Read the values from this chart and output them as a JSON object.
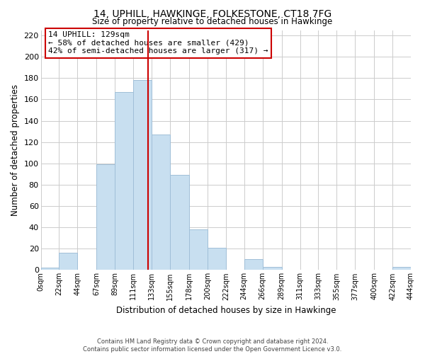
{
  "title": "14, UPHILL, HAWKINGE, FOLKESTONE, CT18 7FG",
  "subtitle": "Size of property relative to detached houses in Hawkinge",
  "xlabel": "Distribution of detached houses by size in Hawkinge",
  "ylabel": "Number of detached properties",
  "bar_color": "#c8dff0",
  "bar_edge_color": "#a0bfd8",
  "background_color": "#ffffff",
  "grid_color": "#cccccc",
  "bin_edges": [
    0,
    22,
    44,
    67,
    89,
    111,
    133,
    155,
    178,
    200,
    222,
    244,
    266,
    289,
    311,
    333,
    355,
    377,
    400,
    422,
    444
  ],
  "bin_labels": [
    "0sqm",
    "22sqm",
    "44sqm",
    "67sqm",
    "89sqm",
    "111sqm",
    "133sqm",
    "155sqm",
    "178sqm",
    "200sqm",
    "222sqm",
    "244sqm",
    "266sqm",
    "289sqm",
    "311sqm",
    "333sqm",
    "355sqm",
    "377sqm",
    "400sqm",
    "422sqm",
    "444sqm"
  ],
  "bar_heights": [
    2,
    16,
    0,
    99,
    167,
    178,
    127,
    89,
    38,
    21,
    0,
    10,
    3,
    0,
    0,
    0,
    0,
    0,
    0,
    3
  ],
  "property_line_x": 129,
  "property_line_color": "#cc0000",
  "ylim": [
    0,
    225
  ],
  "yticks": [
    0,
    20,
    40,
    60,
    80,
    100,
    120,
    140,
    160,
    180,
    200,
    220
  ],
  "annotation_title": "14 UPHILL: 129sqm",
  "annotation_line1": "← 58% of detached houses are smaller (429)",
  "annotation_line2": "42% of semi-detached houses are larger (317) →",
  "annotation_box_color": "#ffffff",
  "annotation_box_edge": "#cc0000",
  "footer_line1": "Contains HM Land Registry data © Crown copyright and database right 2024.",
  "footer_line2": "Contains public sector information licensed under the Open Government Licence v3.0."
}
